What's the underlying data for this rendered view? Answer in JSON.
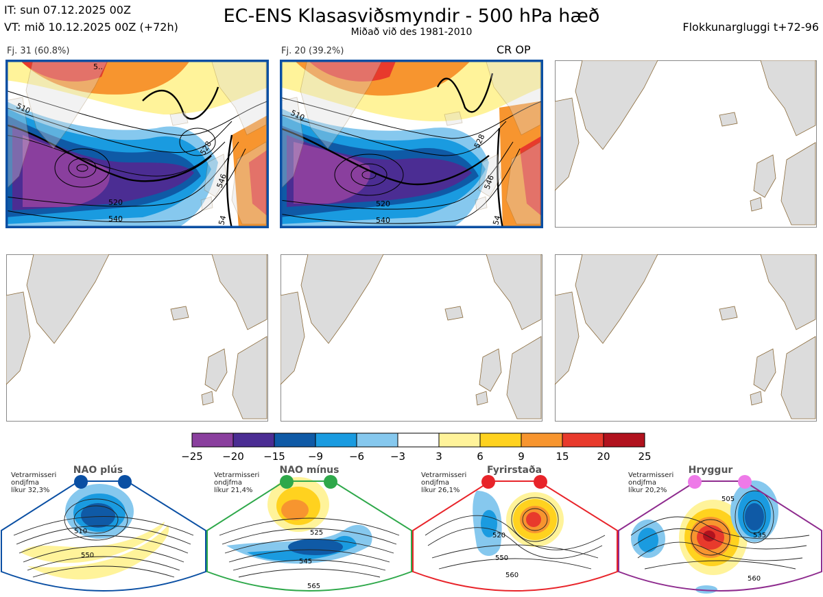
{
  "header": {
    "issue_time": "IT: sun 07.12.2025 00Z",
    "valid_time": "VT: mið 10.12.2025 00Z  (+72h)",
    "title": "EC-ENS Klasasviðsmyndir - 500 hPa hæð",
    "subtitle": "Miðað við des 1981-2010",
    "window": "Flokkunargluggi t+72-96"
  },
  "clusters": [
    {
      "label": "Fj. 31 (60.8%)",
      "members": 31,
      "percent": 60.8,
      "contours": [
        "510",
        "520",
        "528",
        "540",
        "546",
        "5..",
        "54"
      ]
    },
    {
      "label": "Fj. 20 (39.2%)",
      "members": 20,
      "percent": 39.2,
      "tag": "CR OP",
      "contours": [
        "510",
        "520",
        "528",
        "540",
        "546",
        "54"
      ]
    }
  ],
  "blank_panels": 4,
  "chart_data": {
    "type": "heatmap",
    "title": "EC-ENS Klasasviðsmyndir - 500 hPa hæð",
    "colorbar": {
      "ticks": [
        "−25",
        "−20",
        "−15",
        "−9",
        "−6",
        "−3",
        "3",
        "6",
        "9",
        "15",
        "20",
        "25"
      ],
      "colors": [
        "#8a3f9e",
        "#4b2d93",
        "#0f5aa6",
        "#1a9be0",
        "#86c8ee",
        "#ffffff",
        "#fff39a",
        "#ffd21f",
        "#f7952f",
        "#e83a2c",
        "#b1121e"
      ]
    }
  },
  "regimes": [
    {
      "name": "NAO plús",
      "note": [
        "Vetrarmisseri",
        "ondjfma",
        "líkur 32,3%"
      ],
      "probability": 32.3,
      "color": "#0a4fa3",
      "contours": [
        "510",
        "550"
      ]
    },
    {
      "name": "NAO mínus",
      "note": [
        "Vetrarmisseri",
        "ondjfma",
        "líkur 21,4%"
      ],
      "probability": 21.4,
      "color": "#2ea84a",
      "contours": [
        "525",
        "545",
        "565"
      ]
    },
    {
      "name": "Fyrirstaða",
      "note": [
        "Vetrarmisseri",
        "ondjfma",
        "líkur 26,1%"
      ],
      "probability": 26.1,
      "color": "#e8242a",
      "contours": [
        "520",
        "550",
        "560"
      ]
    },
    {
      "name": "Hryggur",
      "note": [
        "Vetrarmisseri",
        "ondjfma",
        "líkur 20,2%"
      ],
      "probability": 20.2,
      "color": "#8e2b8e",
      "contours": [
        "505",
        "535",
        "560"
      ]
    }
  ]
}
